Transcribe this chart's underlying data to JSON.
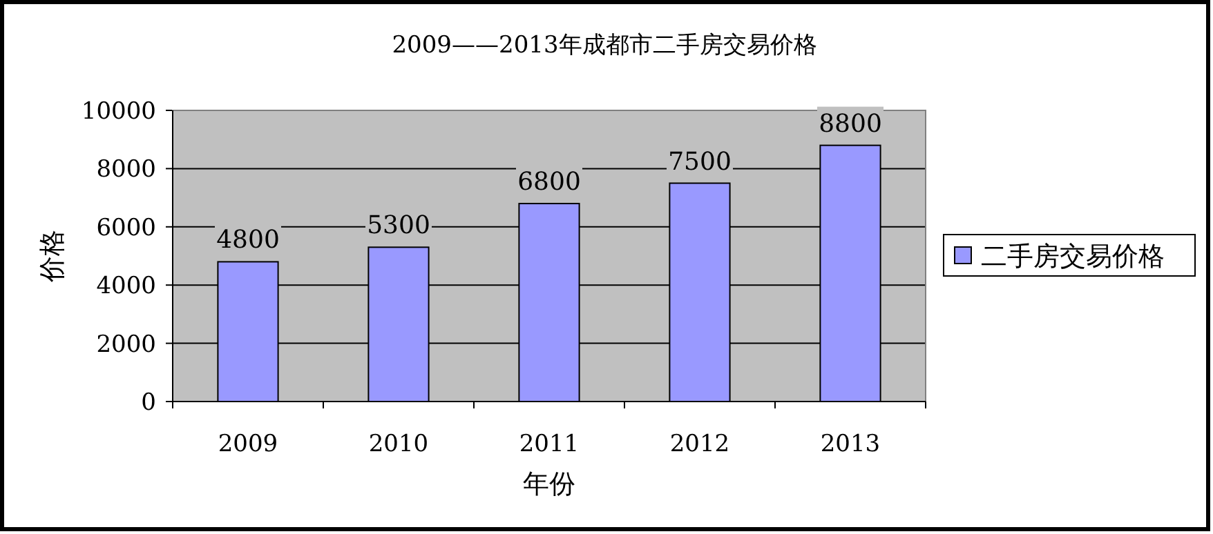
{
  "chart_data": {
    "type": "bar",
    "title": "2009——2013年成都市二手房交易价格",
    "xlabel": "年份",
    "ylabel": "价格",
    "categories": [
      "2009",
      "2010",
      "2011",
      "2012",
      "2013"
    ],
    "series": [
      {
        "name": "二手房交易价格",
        "color": "#9999ff",
        "values": [
          4800,
          5300,
          6800,
          7500,
          8800
        ]
      }
    ],
    "ylim": [
      0,
      10000
    ],
    "yticks": [
      0,
      2000,
      4000,
      6000,
      8000,
      10000
    ],
    "grid": "y",
    "legend": "right",
    "data_labels": true
  }
}
